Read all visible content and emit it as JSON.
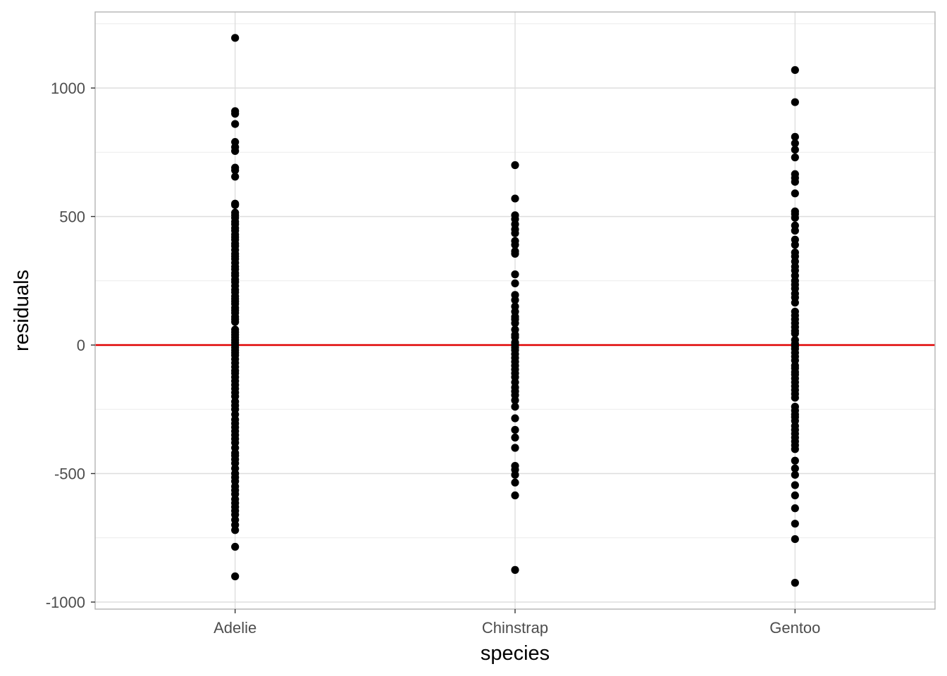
{
  "chart_data": {
    "type": "scatter",
    "title": "",
    "xlabel": "species",
    "ylabel": "residuals",
    "categories": [
      "Adelie",
      "Chinstrap",
      "Gentoo"
    ],
    "ylim": [
      -1040,
      1250
    ],
    "yticks": [
      -1000,
      -500,
      0,
      500,
      1000
    ],
    "y_tick_labels": [
      "-1000",
      "-500",
      "0",
      "500",
      "1000"
    ],
    "grid": true,
    "reference_line": {
      "y": 0,
      "color": "#e00000"
    },
    "point_color": "#000000",
    "series": [
      {
        "category": "Adelie",
        "values": [
          1195,
          910,
          900,
          860,
          790,
          770,
          755,
          690,
          680,
          655,
          550,
          545,
          515,
          505,
          495,
          480,
          470,
          455,
          445,
          430,
          420,
          410,
          395,
          385,
          370,
          355,
          345,
          335,
          320,
          305,
          295,
          280,
          270,
          255,
          245,
          230,
          215,
          205,
          190,
          180,
          170,
          160,
          145,
          135,
          125,
          110,
          100,
          90,
          60,
          50,
          40,
          30,
          20,
          10,
          0,
          -10,
          -20,
          -30,
          -40,
          -55,
          -70,
          -85,
          -100,
          -110,
          -125,
          -140,
          -155,
          -170,
          -185,
          -200,
          -220,
          -235,
          -250,
          -270,
          -290,
          -305,
          -320,
          -335,
          -350,
          -365,
          -380,
          -400,
          -420,
          -430,
          -445,
          -460,
          -480,
          -500,
          -515,
          -530,
          -550,
          -565,
          -580,
          -600,
          -615,
          -630,
          -645,
          -660,
          -680,
          -700,
          -720,
          -785,
          -900
        ]
      },
      {
        "category": "Chinstrap",
        "values": [
          700,
          570,
          505,
          490,
          470,
          450,
          435,
          405,
          390,
          365,
          355,
          275,
          240,
          195,
          175,
          150,
          130,
          110,
          100,
          85,
          60,
          40,
          30,
          10,
          0,
          -10,
          -20,
          -35,
          -50,
          -65,
          -80,
          -95,
          -110,
          -125,
          -145,
          -165,
          -180,
          -195,
          -215,
          -240,
          -285,
          -330,
          -360,
          -400,
          -470,
          -485,
          -505,
          -535,
          -585,
          -875
        ]
      },
      {
        "category": "Gentoo",
        "values": [
          1070,
          945,
          810,
          785,
          760,
          730,
          665,
          650,
          635,
          590,
          520,
          510,
          495,
          465,
          445,
          410,
          390,
          360,
          345,
          325,
          305,
          290,
          270,
          250,
          235,
          220,
          200,
          185,
          165,
          130,
          115,
          100,
          85,
          70,
          55,
          45,
          20,
          5,
          -5,
          -15,
          -30,
          -45,
          -60,
          -80,
          -90,
          -105,
          -115,
          -130,
          -145,
          -160,
          -175,
          -190,
          -205,
          -240,
          -255,
          -270,
          -280,
          -295,
          -315,
          -330,
          -345,
          -360,
          -375,
          -390,
          -405,
          -450,
          -480,
          -505,
          -545,
          -585,
          -635,
          -695,
          -755,
          -925
        ]
      }
    ]
  }
}
